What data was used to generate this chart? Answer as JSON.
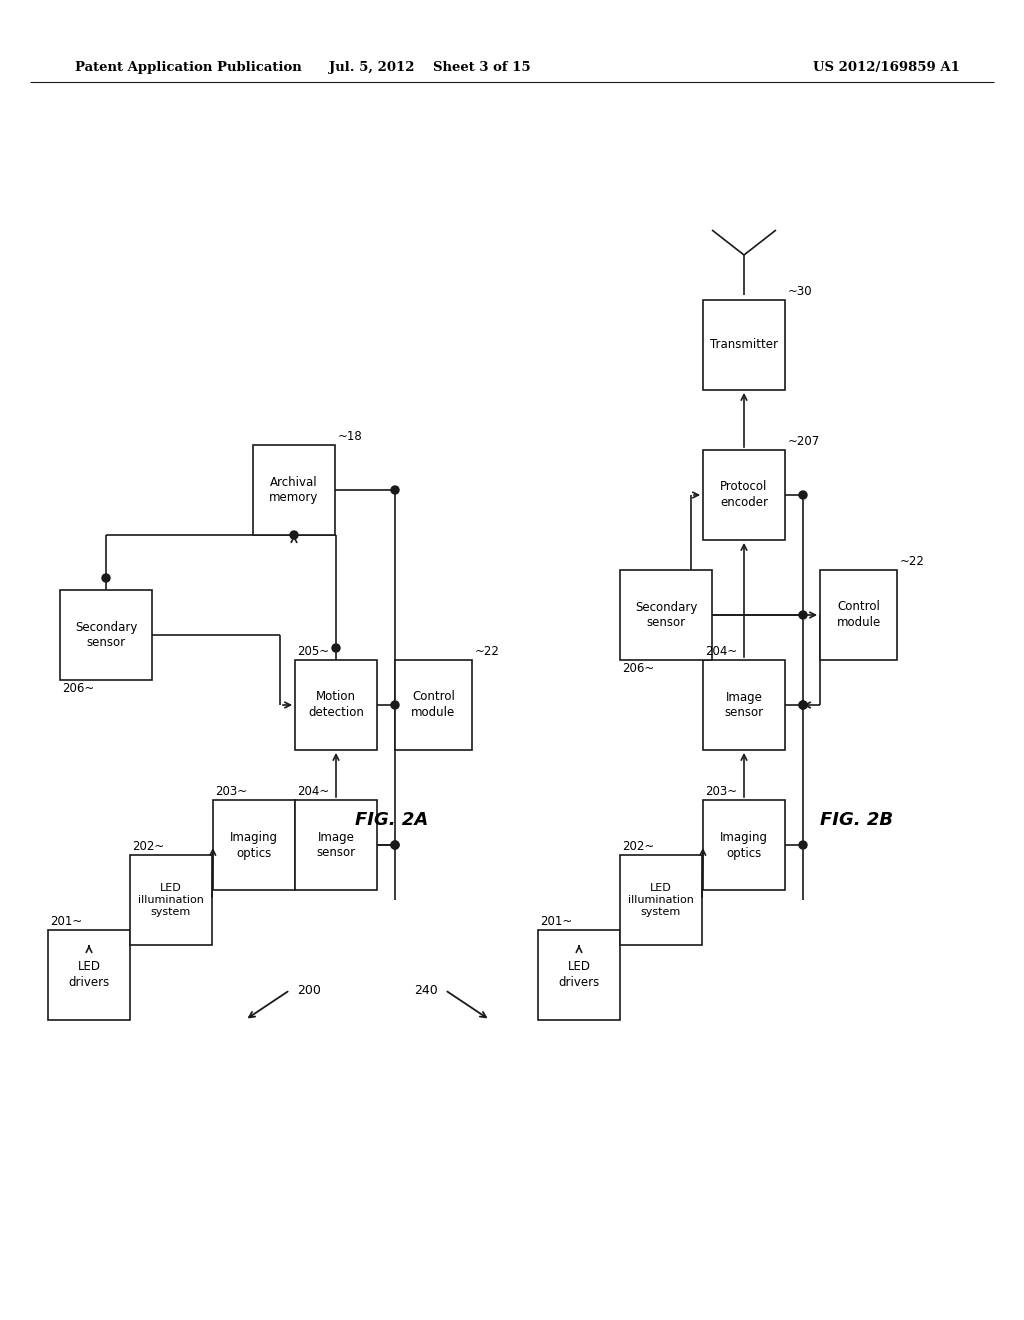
{
  "bg_color": "#ffffff",
  "header_left": "Patent Application Publication",
  "header_center": "Jul. 5, 2012    Sheet 3 of 15",
  "header_right": "US 2012/169859 A1",
  "fig2a_label": "FIG. 2A",
  "fig2b_label": "FIG. 2B",
  "note200": "200",
  "note240": "240"
}
